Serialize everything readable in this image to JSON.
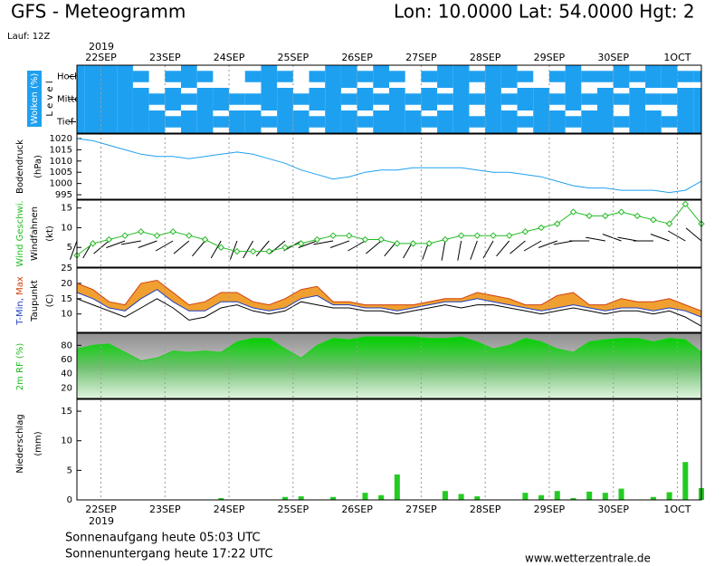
{
  "chart_data": {
    "type": "meteogram",
    "title": "GFS - Meteogramm",
    "location": "Lon: 10.0000 Lat: 54.0000 Hgt: 2",
    "run": "Lauf: 12Z",
    "year": "2019",
    "xlim": [
      0,
      39
    ],
    "xticks": [
      {
        "value": 1.5,
        "label": "22SEP"
      },
      {
        "value": 5.5,
        "label": "23SEP"
      },
      {
        "value": 9.5,
        "label": "24SEP"
      },
      {
        "value": 13.5,
        "label": "25SEP"
      },
      {
        "value": 17.5,
        "label": "26SEP"
      },
      {
        "value": 21.5,
        "label": "27SEP"
      },
      {
        "value": 25.5,
        "label": "28SEP"
      },
      {
        "value": 29.5,
        "label": "29SEP"
      },
      {
        "value": 33.5,
        "label": "30SEP"
      },
      {
        "value": 37.5,
        "label": "1OCT"
      }
    ],
    "clouds": {
      "label": "Wolken (%)",
      "level_label": "L e v e l",
      "color": "#1ea0f0",
      "layers": [
        {
          "name": "Hoch",
          "values": [
            100,
            100,
            100,
            100,
            50,
            0,
            50,
            100,
            50,
            0,
            0,
            50,
            100,
            50,
            0,
            50,
            100,
            100,
            50,
            100,
            50,
            0,
            50,
            100,
            100,
            50,
            100,
            100,
            50,
            0,
            50,
            100,
            50,
            50,
            100,
            50,
            100,
            100,
            50,
            50
          ]
        },
        {
          "name": "Mittel",
          "values": [
            100,
            100,
            100,
            100,
            100,
            50,
            100,
            50,
            100,
            100,
            50,
            50,
            100,
            100,
            50,
            100,
            100,
            50,
            100,
            50,
            100,
            50,
            100,
            50,
            100,
            50,
            100,
            50,
            100,
            100,
            50,
            100,
            50,
            100,
            50,
            100,
            50,
            50,
            100,
            100
          ]
        },
        {
          "name": "Tief",
          "values": [
            100,
            100,
            100,
            100,
            100,
            100,
            50,
            100,
            100,
            50,
            100,
            100,
            50,
            100,
            100,
            50,
            100,
            100,
            50,
            100,
            100,
            100,
            50,
            100,
            100,
            50,
            100,
            100,
            50,
            100,
            100,
            50,
            100,
            100,
            50,
            100,
            100,
            50,
            100,
            100
          ]
        }
      ]
    },
    "pressure": {
      "label": "Bodendruck",
      "unit": "(hPa)",
      "color": "#1ea0f0",
      "ylim": [
        993,
        1022
      ],
      "yticks": [
        995,
        1000,
        1005,
        1010,
        1015,
        1020
      ],
      "values": [
        1020,
        1019,
        1017,
        1015,
        1013,
        1012,
        1012,
        1011,
        1012,
        1013,
        1014,
        1013,
        1011,
        1009,
        1006,
        1004,
        1002,
        1003,
        1005,
        1006,
        1006,
        1007,
        1007,
        1007,
        1007,
        1006,
        1005,
        1005,
        1004,
        1003,
        1001,
        999,
        998,
        998,
        997,
        997,
        997,
        996,
        997,
        1001
      ]
    },
    "wind": {
      "label": "Wind Geschwi.",
      "barb_label": "Windfahnen",
      "unit": "(kt)",
      "color": "#22bb22",
      "ylim": [
        0,
        17
      ],
      "yticks": [
        5,
        10,
        15
      ],
      "speed": [
        3,
        6,
        7,
        8,
        9,
        8,
        9,
        8,
        7,
        5,
        4,
        4,
        4,
        5,
        6,
        7,
        8,
        8,
        7,
        7,
        6,
        6,
        6,
        7,
        8,
        8,
        8,
        8,
        9,
        10,
        11,
        14,
        13,
        13,
        14,
        13,
        12,
        11,
        16,
        11
      ],
      "direction": [
        200,
        210,
        230,
        250,
        260,
        250,
        240,
        230,
        220,
        210,
        200,
        210,
        220,
        230,
        240,
        250,
        260,
        250,
        240,
        230,
        220,
        210,
        200,
        190,
        190,
        200,
        210,
        220,
        230,
        240,
        250,
        260,
        270,
        280,
        290,
        280,
        270,
        290,
        300,
        310
      ]
    },
    "temperature": {
      "label_min": "T-Min,",
      "label_max": "Max",
      "label_dew": "Taupunkt",
      "unit": "(C)",
      "fill": "#f0a030",
      "ylim": [
        4,
        25
      ],
      "yticks": [
        10,
        15,
        20,
        25
      ],
      "series": [
        {
          "name": "Max",
          "color": "#d04010",
          "values": [
            20,
            18,
            14,
            13,
            20,
            21,
            17,
            13,
            14,
            17,
            17,
            14,
            13,
            15,
            18,
            19,
            14,
            14,
            13,
            13,
            13,
            13,
            14,
            15,
            15,
            17,
            16,
            15,
            13,
            13,
            16,
            17,
            13,
            13,
            15,
            14,
            14,
            15,
            13,
            11
          ]
        },
        {
          "name": "T-Min",
          "color": "#2040c0",
          "values": [
            17,
            15,
            12,
            11,
            15,
            18,
            14,
            11,
            11,
            14,
            14,
            12,
            11,
            12,
            15,
            16,
            13,
            13,
            12,
            12,
            11,
            12,
            13,
            14,
            14,
            15,
            14,
            13,
            12,
            11,
            12,
            13,
            12,
            11,
            12,
            12,
            11,
            12,
            11,
            9
          ]
        },
        {
          "name": "Taupunkt",
          "color": "#000000",
          "values": [
            15,
            13,
            11,
            9,
            12,
            15,
            12,
            8,
            9,
            12,
            13,
            11,
            10,
            11,
            14,
            13,
            12,
            12,
            11,
            11,
            10,
            11,
            12,
            13,
            12,
            13,
            13,
            12,
            11,
            10,
            11,
            12,
            11,
            10,
            11,
            11,
            10,
            11,
            9,
            6
          ]
        }
      ]
    },
    "humidity": {
      "label": "2m RF (%)",
      "color": "#22cc22",
      "ylim": [
        5,
        97
      ],
      "yticks": [
        20,
        40,
        60,
        80
      ],
      "values": [
        75,
        80,
        82,
        70,
        58,
        62,
        72,
        70,
        72,
        70,
        85,
        90,
        90,
        75,
        62,
        80,
        90,
        88,
        92,
        92,
        92,
        92,
        90,
        90,
        92,
        85,
        75,
        80,
        90,
        85,
        75,
        70,
        85,
        88,
        90,
        90,
        85,
        90,
        88,
        70
      ]
    },
    "precipitation": {
      "label": "Niederschlag",
      "unit": "(mm)",
      "color": "#22cc22",
      "ylim": [
        0,
        17
      ],
      "yticks": [
        0,
        5,
        10,
        15
      ],
      "values": [
        0,
        0,
        0,
        0,
        0,
        0,
        0,
        0,
        0,
        0.3,
        0,
        0,
        0,
        0.5,
        0.6,
        0,
        0.5,
        0,
        1.2,
        0.8,
        4.3,
        0,
        0,
        1.5,
        1.0,
        0.6,
        0,
        0,
        1.2,
        0.8,
        1.5,
        0.3,
        1.4,
        1.2,
        1.9,
        0,
        0.5,
        1.3,
        6.4,
        2.0
      ]
    },
    "sunrise": "Sonnenaufgang heute 05:03 UTC",
    "sunset": "Sonnenuntergang heute 17:22 UTC",
    "source": "www.wetterzentrale.de"
  }
}
